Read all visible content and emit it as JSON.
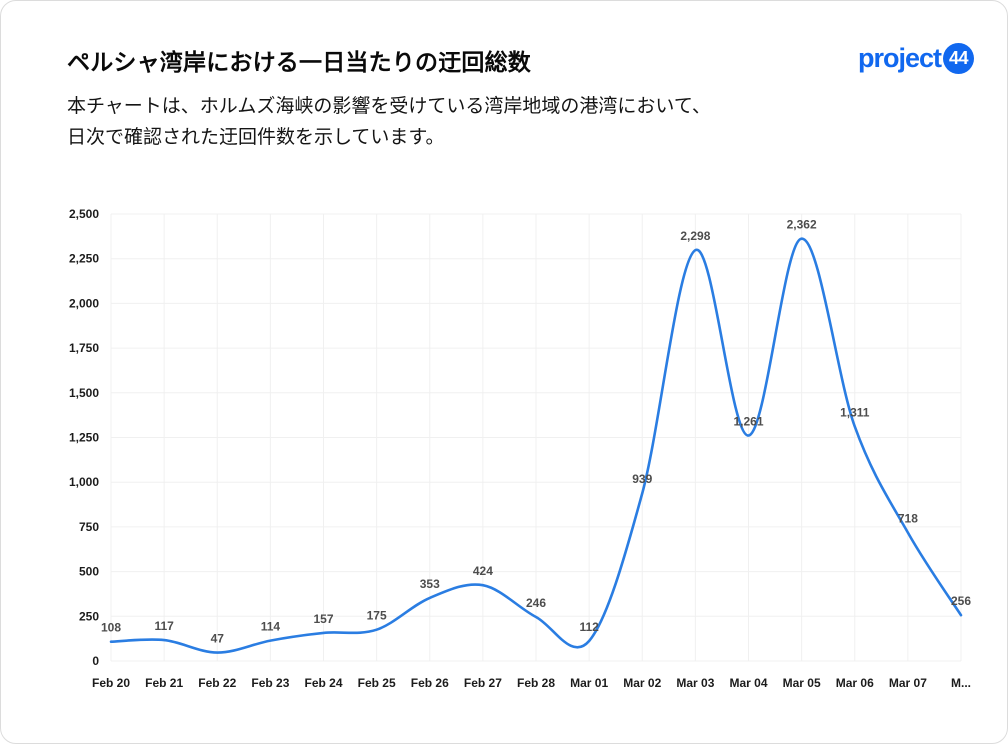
{
  "header": {
    "title": "ペルシャ湾岸における一日当たりの迂回総数",
    "subtitle_line1": "本チャートは、ホルムズ海峡の影響を受けている湾岸地域の港湾において、",
    "subtitle_line2": "日次で確認された迂回件数を示しています。"
  },
  "logo": {
    "text": "project",
    "badge": "44",
    "color": "#1168ef"
  },
  "chart_data": {
    "type": "line",
    "title": "ペルシャ湾岸における一日当たりの迂回総数",
    "categories": [
      "Feb 20",
      "Feb 21",
      "Feb 22",
      "Feb 23",
      "Feb 24",
      "Feb 25",
      "Feb 26",
      "Feb 27",
      "Feb 28",
      "Mar 01",
      "Mar 02",
      "Mar 03",
      "Mar 04",
      "Mar 05",
      "Mar 06",
      "Mar 07",
      "M..."
    ],
    "values": [
      108,
      117,
      47,
      114,
      157,
      175,
      353,
      424,
      246,
      112,
      939,
      2298,
      1261,
      2362,
      1311,
      718,
      256
    ],
    "point_labels": [
      "108",
      "117",
      "47",
      "114",
      "157",
      "175",
      "353",
      "424",
      "246",
      "112",
      "939",
      "2,298",
      "1,261",
      "2,362",
      "1,311",
      "718",
      "256"
    ],
    "y_ticks": [
      "0",
      "250",
      "500",
      "750",
      "1,000",
      "1,250",
      "1,500",
      "1,750",
      "2,000",
      "2,250",
      "2,500"
    ],
    "ylim": [
      0,
      2500
    ],
    "xlabel": "",
    "ylabel": "",
    "grid": "both",
    "legend": "none",
    "line_color": "#2a7de2",
    "grid_color": "#f0f0f0"
  }
}
